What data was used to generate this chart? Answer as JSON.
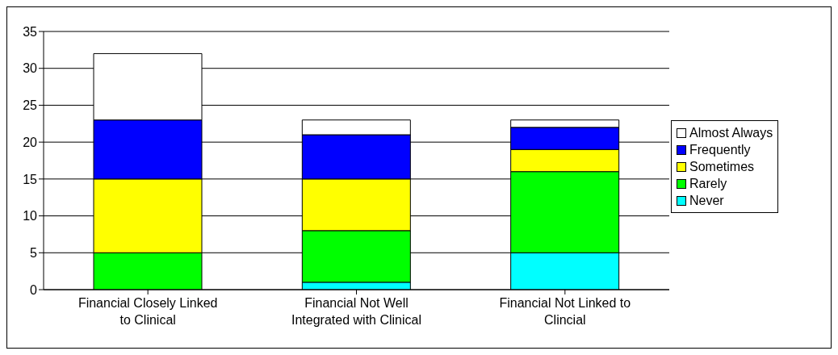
{
  "chart_data": {
    "type": "bar",
    "stacked": true,
    "categories": [
      "Financial Closely Linked to Clinical",
      "Financial Not Well Integrated with Clinical",
      "Financial Not Linked to Clincial"
    ],
    "series": [
      {
        "name": "Never",
        "color": "#00ffff",
        "values": [
          0,
          1,
          5
        ]
      },
      {
        "name": "Rarely",
        "color": "#00ff00",
        "values": [
          5,
          7,
          11
        ]
      },
      {
        "name": "Sometimes",
        "color": "#ffff00",
        "values": [
          10,
          7,
          3
        ]
      },
      {
        "name": "Frequently",
        "color": "#0000ff",
        "values": [
          8,
          6,
          3
        ]
      },
      {
        "name": "Almost Always",
        "color": "#ffffff",
        "values": [
          9,
          2,
          1
        ]
      }
    ],
    "ylim": [
      0,
      35
    ],
    "yticks": [
      0,
      5,
      10,
      15,
      20,
      25,
      30,
      35
    ],
    "grid": "y",
    "legend": "right"
  }
}
